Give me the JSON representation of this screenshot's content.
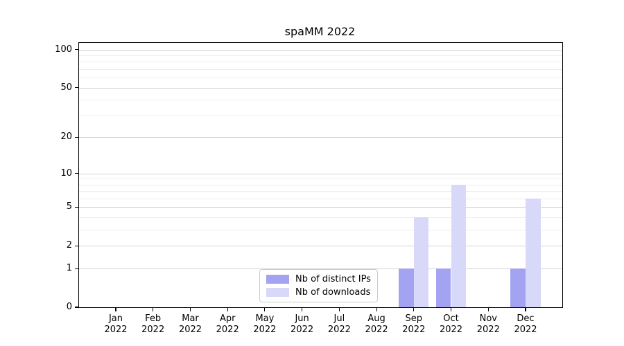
{
  "chart_data": {
    "type": "bar",
    "title": "spaMM 2022",
    "xlabel": "",
    "ylabel": "",
    "x_tick_months": [
      "Jan",
      "Feb",
      "Mar",
      "Apr",
      "May",
      "Jun",
      "Jul",
      "Aug",
      "Sep",
      "Oct",
      "Nov",
      "Dec"
    ],
    "x_tick_year": "2022",
    "y_scale": "log1p",
    "ylim": [
      0,
      100
    ],
    "y_major_ticks": [
      0,
      1,
      2,
      5,
      10,
      20,
      50,
      100
    ],
    "y_minor_gridline_values": [
      3,
      4,
      6,
      7,
      8,
      9,
      30,
      40,
      60,
      70,
      80,
      90
    ],
    "grid": true,
    "legend_position": "inside-bottom-center",
    "series": [
      {
        "name": "Nb of distinct IPs",
        "color": "#a3a3f2",
        "values": [
          0,
          0,
          0,
          0,
          0,
          0,
          0,
          0,
          1,
          1,
          0,
          1
        ]
      },
      {
        "name": "Nb of downloads",
        "color": "#d8d8f8",
        "values": [
          0,
          0,
          0,
          0,
          0,
          0,
          0,
          0,
          4,
          8,
          0,
          6
        ]
      }
    ],
    "colors": {
      "axis": "#000000",
      "text": "#000000",
      "major_grid": "#d2d2d2",
      "minor_grid": "#ececec",
      "legend_border": "#cbcbcb",
      "background": "#ffffff"
    }
  }
}
